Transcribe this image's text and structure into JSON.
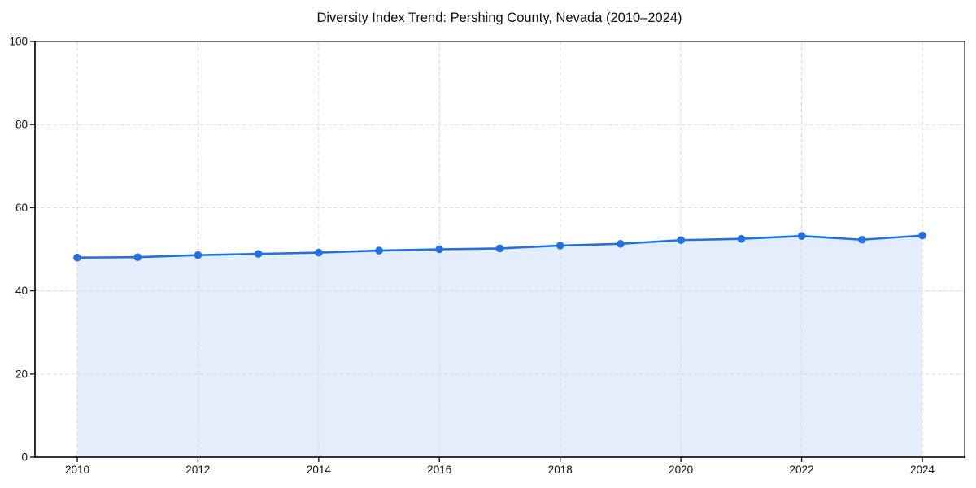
{
  "chart_data": {
    "type": "line",
    "title": "Diversity Index Trend: Pershing County, Nevada (2010–2024)",
    "x": [
      2010,
      2011,
      2012,
      2013,
      2014,
      2015,
      2016,
      2017,
      2018,
      2019,
      2020,
      2021,
      2022,
      2023,
      2024
    ],
    "series": [
      {
        "name": "Diversity Index",
        "values": [
          48.0,
          48.1,
          48.6,
          48.9,
          49.2,
          49.7,
          50.0,
          50.2,
          50.9,
          51.3,
          52.2,
          52.5,
          53.2,
          52.3,
          53.3
        ]
      }
    ],
    "xlabel": "",
    "ylabel": "",
    "ylim": [
      0,
      100
    ],
    "yticks": [
      0,
      20,
      40,
      60,
      80,
      100
    ],
    "ytick_labels": [
      "0",
      "20",
      "40",
      "60",
      "80",
      "100"
    ],
    "xticks": [
      2010,
      2012,
      2014,
      2016,
      2018,
      2020,
      2022,
      2024
    ],
    "xtick_labels": [
      "2010",
      "2012",
      "2014",
      "2016",
      "2018",
      "2020",
      "2022",
      "2024"
    ],
    "legend": "none",
    "grid": "dashed horizontal and vertical gridlines",
    "area_fill": true,
    "marker": "circle",
    "colors": {
      "line": "#2171e5",
      "marker": "#2171e5",
      "area": "#e4edfb",
      "grid": "#d7d7d7",
      "axis": "#1a1a1a",
      "text": "#111111",
      "background": "#ffffff"
    }
  }
}
